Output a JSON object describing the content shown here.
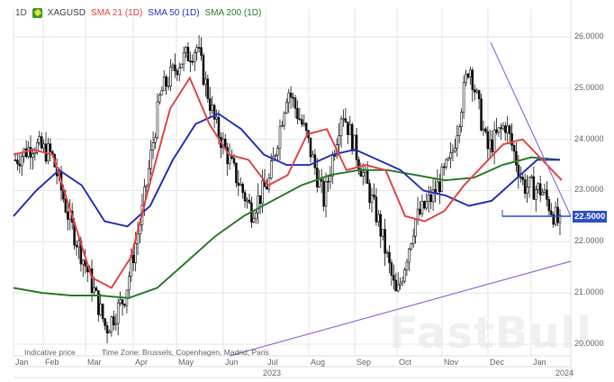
{
  "header": {
    "interval": "1D",
    "symbol": "XAGUSD",
    "indicators": [
      {
        "label": "SMA 21 (1D)",
        "color": "#e04848"
      },
      {
        "label": "SMA 50 (1D)",
        "color": "#2b35b8"
      },
      {
        "label": "SMA 200 (1D)",
        "color": "#2e7d2e"
      }
    ]
  },
  "footer": {
    "indicative": "Indicative price",
    "timezone": "Time Zone: Brussels, Copenhagen, Madrid, Paris"
  },
  "current_price_tag": "22.5000",
  "watermark": "FastBull",
  "chart_data": {
    "type": "candlestick",
    "title": "XAGUSD 1D",
    "xlabel": "",
    "ylabel": "",
    "ylim": [
      19.9,
      26.3
    ],
    "yticks": [
      "26.0000",
      "25.0000",
      "24.0000",
      "23.0000",
      "22.0000",
      "21.0000",
      "20.0000"
    ],
    "xticks": [
      "Jan",
      "Feb",
      "Mar",
      "Apr",
      "May",
      "Jun",
      "Jul",
      "Aug",
      "Sep",
      "Oct",
      "Nov",
      "Dec",
      "Jan"
    ],
    "year_labels": [
      "2023",
      "2024"
    ],
    "grid": true,
    "legend_position": "top-left",
    "series": [
      {
        "name": "XAGUSD close",
        "x": [
          "Jan",
          "Jan",
          "Feb",
          "Feb",
          "Mar",
          "Mar",
          "Mar",
          "Apr",
          "Apr",
          "May",
          "May",
          "May",
          "Jun",
          "Jun",
          "Jul",
          "Jul",
          "Aug",
          "Aug",
          "Aug",
          "Sep",
          "Sep",
          "Oct",
          "Oct",
          "Nov",
          "Nov",
          "Nov",
          "Dec",
          "Dec",
          "Dec",
          "Jan",
          "Jan"
        ],
        "values": [
          23.6,
          23.9,
          23.7,
          22.4,
          21.4,
          20.3,
          20.9,
          22.6,
          24.9,
          25.5,
          25.8,
          24.3,
          23.4,
          22.6,
          23.2,
          25.0,
          24.1,
          22.8,
          24.6,
          23.5,
          22.4,
          20.9,
          22.4,
          22.9,
          23.6,
          25.5,
          23.8,
          24.3,
          23.1,
          23.0,
          22.3
        ]
      },
      {
        "name": "SMA 21 (1D)",
        "values": [
          23.7,
          23.8,
          23.7,
          22.5,
          21.3,
          21.1,
          21.7,
          23.2,
          24.6,
          25.2,
          24.3,
          23.7,
          23.6,
          23.1,
          23.3,
          24.1,
          24.2,
          23.4,
          23.5,
          23.4,
          22.5,
          22.4,
          22.6,
          23.1,
          23.5,
          23.9,
          24.0,
          23.6,
          23.2
        ]
      },
      {
        "name": "SMA 50 (1D)",
        "values": [
          22.5,
          23.0,
          23.4,
          23.1,
          22.4,
          22.3,
          22.7,
          23.6,
          24.3,
          24.5,
          24.2,
          23.7,
          23.5,
          23.5,
          23.7,
          23.8,
          23.6,
          23.4,
          23.0,
          22.9,
          22.7,
          22.8,
          23.2,
          23.6,
          23.6
        ]
      },
      {
        "name": "SMA 200 (1D)",
        "values": [
          21.1,
          21.0,
          20.95,
          20.95,
          20.9,
          21.1,
          21.6,
          22.1,
          22.5,
          22.8,
          23.1,
          23.3,
          23.4,
          23.4,
          23.3,
          23.2,
          23.25,
          23.5,
          23.65,
          23.6
        ]
      }
    ],
    "annotations": [
      {
        "type": "horizontal",
        "price": 22.5,
        "label": "22.5000"
      },
      {
        "type": "trendline",
        "desc": "descending resistance from Nov high ~25.9 to Jan ~22.6"
      },
      {
        "type": "trendline",
        "desc": "ascending support from Jun ~19.9 to Jan ~21.6"
      }
    ]
  }
}
